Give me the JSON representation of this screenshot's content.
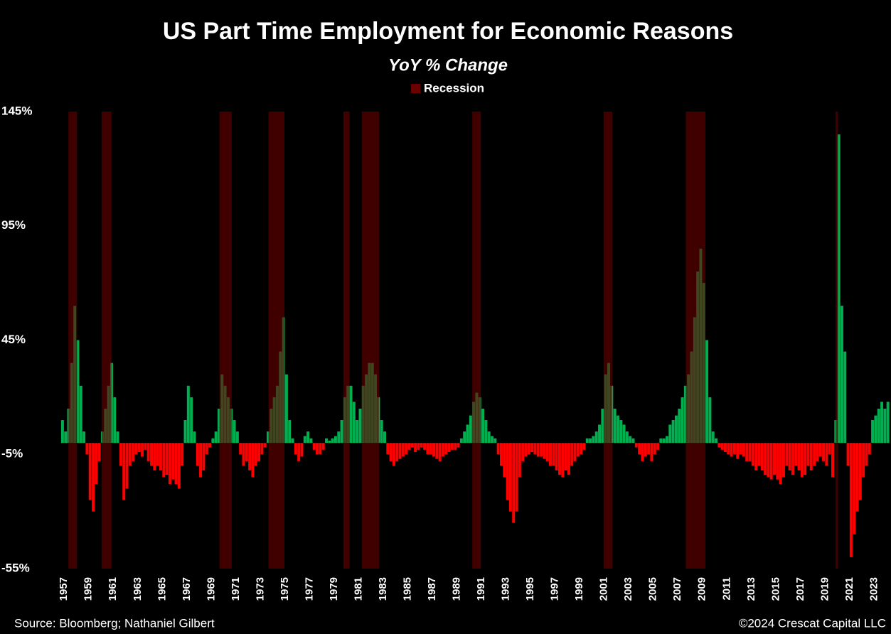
{
  "chart_data": {
    "type": "bar",
    "title": "US Part Time Employment for Economic Reasons",
    "subtitle": "YoY % Change",
    "source": "Source: Bloomberg; Nathaniel Gilbert",
    "copyright": "©2024 Crescat Capital LLC",
    "legend": {
      "name": "Recession",
      "color": "#6b0000"
    },
    "recessions": [
      [
        1957.6,
        1958.3
      ],
      [
        1960.3,
        1961.1
      ],
      [
        1969.9,
        1970.9
      ],
      [
        1973.9,
        1975.2
      ],
      [
        1980.0,
        1980.5
      ],
      [
        1981.5,
        1982.9
      ],
      [
        1990.5,
        1991.2
      ],
      [
        2001.2,
        2001.9
      ],
      [
        2007.9,
        2009.5
      ],
      [
        2020.1,
        2020.3
      ]
    ],
    "positive_color": "#00b050",
    "negative_color": "#ff0000",
    "ylim": [
      -55,
      145
    ],
    "yticks": [
      {
        "value": -55,
        "label": "-55%"
      },
      {
        "value": -5,
        "label": "-5%"
      },
      {
        "value": 45,
        "label": "45%"
      },
      {
        "value": 95,
        "label": "95%"
      },
      {
        "value": 145,
        "label": "145%"
      }
    ],
    "xlim": [
      1956.6,
      2024.5
    ],
    "xticks": [
      1957,
      1959,
      1961,
      1963,
      1965,
      1967,
      1969,
      1971,
      1973,
      1975,
      1977,
      1979,
      1981,
      1983,
      1985,
      1987,
      1989,
      1991,
      1993,
      1995,
      1997,
      1999,
      2001,
      2003,
      2005,
      2007,
      2009,
      2011,
      2013,
      2015,
      2017,
      2019,
      2021,
      2023
    ],
    "x": [
      1957,
      1957.25,
      1957.5,
      1957.75,
      1958,
      1958.25,
      1958.5,
      1958.75,
      1959,
      1959.25,
      1959.5,
      1959.75,
      1960,
      1960.25,
      1960.5,
      1960.75,
      1961,
      1961.25,
      1961.5,
      1961.75,
      1962,
      1962.25,
      1962.5,
      1962.75,
      1963,
      1963.25,
      1963.5,
      1963.75,
      1964,
      1964.25,
      1964.5,
      1964.75,
      1965,
      1965.25,
      1965.5,
      1965.75,
      1966,
      1966.25,
      1966.5,
      1966.75,
      1967,
      1967.25,
      1967.5,
      1967.75,
      1968,
      1968.25,
      1968.5,
      1968.75,
      1969,
      1969.25,
      1969.5,
      1969.75,
      1970,
      1970.25,
      1970.5,
      1970.75,
      1971,
      1971.25,
      1971.5,
      1971.75,
      1972,
      1972.25,
      1972.5,
      1972.75,
      1973,
      1973.25,
      1973.5,
      1973.75,
      1974,
      1974.25,
      1974.5,
      1974.75,
      1975,
      1975.25,
      1975.5,
      1975.75,
      1976,
      1976.25,
      1976.5,
      1976.75,
      1977,
      1977.25,
      1977.5,
      1977.75,
      1978,
      1978.25,
      1978.5,
      1978.75,
      1979,
      1979.25,
      1979.5,
      1979.75,
      1980,
      1980.25,
      1980.5,
      1980.75,
      1981,
      1981.25,
      1981.5,
      1981.75,
      1982,
      1982.25,
      1982.5,
      1982.75,
      1983,
      1983.25,
      1983.5,
      1983.75,
      1984,
      1984.25,
      1984.5,
      1984.75,
      1985,
      1985.25,
      1985.5,
      1985.75,
      1986,
      1986.25,
      1986.5,
      1986.75,
      1987,
      1987.25,
      1987.5,
      1987.75,
      1988,
      1988.25,
      1988.5,
      1988.75,
      1989,
      1989.25,
      1989.5,
      1989.75,
      1990,
      1990.25,
      1990.5,
      1990.75,
      1991,
      1991.25,
      1991.5,
      1991.75,
      1992,
      1992.25,
      1992.5,
      1992.75,
      1993,
      1993.25,
      1993.5,
      1993.75,
      1994,
      1994.25,
      1994.5,
      1994.75,
      1995,
      1995.25,
      1995.5,
      1995.75,
      1996,
      1996.25,
      1996.5,
      1996.75,
      1997,
      1997.25,
      1997.5,
      1997.75,
      1998,
      1998.25,
      1998.5,
      1998.75,
      1999,
      1999.25,
      1999.5,
      1999.75,
      2000,
      2000.25,
      2000.5,
      2000.75,
      2001,
      2001.25,
      2001.5,
      2001.75,
      2002,
      2002.25,
      2002.5,
      2002.75,
      2003,
      2003.25,
      2003.5,
      2003.75,
      2004,
      2004.25,
      2004.5,
      2004.75,
      2005,
      2005.25,
      2005.5,
      2005.75,
      2006,
      2006.25,
      2006.5,
      2006.75,
      2007,
      2007.25,
      2007.5,
      2007.75,
      2008,
      2008.25,
      2008.5,
      2008.75,
      2009,
      2009.25,
      2009.5,
      2009.75,
      2010,
      2010.25,
      2010.5,
      2010.75,
      2011,
      2011.25,
      2011.5,
      2011.75,
      2012,
      2012.25,
      2012.5,
      2012.75,
      2013,
      2013.25,
      2013.5,
      2013.75,
      2014,
      2014.25,
      2014.5,
      2014.75,
      2015,
      2015.25,
      2015.5,
      2015.75,
      2016,
      2016.25,
      2016.5,
      2016.75,
      2017,
      2017.25,
      2017.5,
      2017.75,
      2018,
      2018.25,
      2018.5,
      2018.75,
      2019,
      2019.25,
      2019.5,
      2019.75,
      2020,
      2020.25,
      2020.5,
      2020.75,
      2021,
      2021.25,
      2021.5,
      2021.75,
      2022,
      2022.25,
      2022.5,
      2022.75,
      2023,
      2023.25,
      2023.5,
      2023.75,
      2024,
      2024.25
    ],
    "values": [
      10,
      5,
      15,
      35,
      60,
      45,
      25,
      5,
      -5,
      -25,
      -30,
      -18,
      -8,
      5,
      15,
      25,
      35,
      20,
      5,
      -10,
      -25,
      -20,
      -10,
      -8,
      -5,
      -4,
      -6,
      -3,
      -8,
      -10,
      -12,
      -10,
      -12,
      -15,
      -14,
      -18,
      -16,
      -18,
      -20,
      -10,
      10,
      25,
      20,
      5,
      -10,
      -15,
      -12,
      -5,
      -2,
      2,
      5,
      15,
      30,
      25,
      20,
      15,
      10,
      5,
      -5,
      -10,
      -8,
      -12,
      -15,
      -10,
      -8,
      -5,
      -2,
      5,
      15,
      20,
      25,
      40,
      55,
      30,
      10,
      2,
      -5,
      -8,
      -6,
      3,
      5,
      2,
      -3,
      -5,
      -5,
      -3,
      2,
      1,
      2,
      3,
      5,
      10,
      20,
      25,
      25,
      18,
      10,
      15,
      25,
      30,
      35,
      35,
      30,
      20,
      10,
      5,
      -5,
      -8,
      -10,
      -8,
      -7,
      -6,
      -5,
      -3,
      -2,
      -4,
      -3,
      -2,
      -3,
      -5,
      -5,
      -6,
      -7,
      -8,
      -6,
      -5,
      -4,
      -3,
      -3,
      -2,
      2,
      5,
      8,
      12,
      18,
      22,
      20,
      15,
      10,
      5,
      3,
      2,
      -5,
      -10,
      -15,
      -25,
      -30,
      -35,
      -30,
      -15,
      -8,
      -6,
      -5,
      -4,
      -5,
      -6,
      -6,
      -7,
      -8,
      -10,
      -10,
      -12,
      -14,
      -15,
      -12,
      -14,
      -10,
      -8,
      -6,
      -5,
      -3,
      2,
      2,
      3,
      5,
      8,
      15,
      30,
      35,
      25,
      15,
      12,
      10,
      8,
      5,
      3,
      2,
      -2,
      -5,
      -8,
      -6,
      -5,
      -8,
      -5,
      -3,
      2,
      2,
      3,
      8,
      10,
      12,
      15,
      20,
      25,
      30,
      40,
      55,
      75,
      85,
      70,
      45,
      20,
      5,
      2,
      -2,
      -3,
      -4,
      -5,
      -6,
      -5,
      -7,
      -5,
      -6,
      -8,
      -8,
      -10,
      -12,
      -10,
      -12,
      -14,
      -15,
      -16,
      -14,
      -16,
      -18,
      -15,
      -10,
      -12,
      -14,
      -10,
      -12,
      -15,
      -14,
      -10,
      -12,
      -10,
      -8,
      -6,
      -8,
      -10,
      -5,
      -15,
      10,
      135,
      60,
      40,
      -10,
      -50,
      -40,
      -30,
      -25,
      -15,
      -10,
      -5,
      10,
      12,
      15,
      18,
      15,
      18
    ]
  }
}
